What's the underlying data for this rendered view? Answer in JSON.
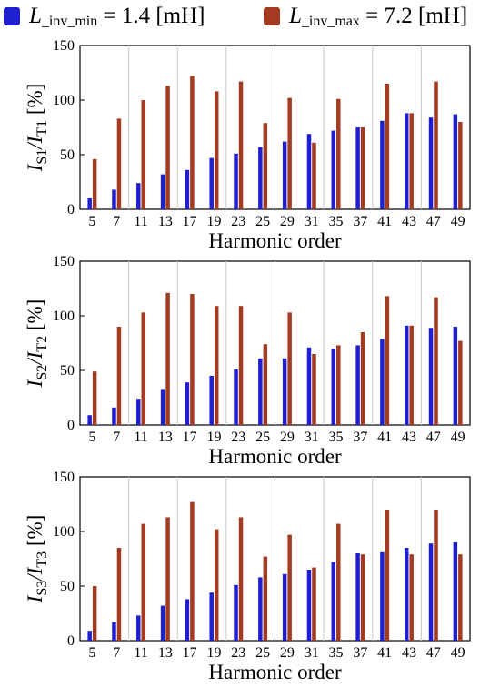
{
  "legend": {
    "items": [
      {
        "var": "L",
        "sub": "_inv_min",
        "value": " = 1.4 [mH]",
        "color": "#1f1fd0"
      },
      {
        "var": "L",
        "sub": "_inv_max",
        "value": " = 7.2 [mH]",
        "color": "#a33a22"
      }
    ]
  },
  "chart_data": [
    {
      "type": "bar",
      "categories": [
        "5",
        "7",
        "11",
        "13",
        "17",
        "19",
        "23",
        "25",
        "29",
        "31",
        "35",
        "37",
        "41",
        "43",
        "47",
        "49"
      ],
      "series": [
        {
          "name": "L_inv_min = 1.4 [mH]",
          "color": "#1f1fd0",
          "values": [
            10,
            18,
            24,
            32,
            36,
            47,
            51,
            57,
            62,
            69,
            72,
            75,
            81,
            88,
            84,
            87
          ]
        },
        {
          "name": "L_inv_max = 7.2 [mH]",
          "color": "#a33a22",
          "values": [
            46,
            83,
            100,
            113,
            122,
            108,
            117,
            79,
            102,
            61,
            101,
            75,
            115,
            88,
            117,
            80
          ]
        }
      ],
      "ylabel": {
        "main": "I",
        "sub1": "S1",
        "mid": "/I",
        "sub2": "T1",
        "tail": " [%]"
      },
      "xlabel": "Harmonic order",
      "ylim": [
        0,
        150
      ],
      "yticks": [
        0,
        50,
        100,
        150
      ],
      "grid": true
    },
    {
      "type": "bar",
      "categories": [
        "5",
        "7",
        "11",
        "13",
        "17",
        "19",
        "23",
        "25",
        "29",
        "31",
        "35",
        "37",
        "41",
        "43",
        "47",
        "49"
      ],
      "series": [
        {
          "name": "L_inv_min = 1.4 [mH]",
          "color": "#1f1fd0",
          "values": [
            9,
            16,
            24,
            33,
            39,
            45,
            51,
            61,
            61,
            71,
            70,
            73,
            79,
            91,
            89,
            90
          ]
        },
        {
          "name": "L_inv_max = 7.2 [mH]",
          "color": "#a33a22",
          "values": [
            49,
            90,
            103,
            121,
            120,
            109,
            109,
            74,
            103,
            65,
            73,
            85,
            118,
            91,
            117,
            77
          ]
        }
      ],
      "ylabel": {
        "main": "I",
        "sub1": "S2",
        "mid": "/I",
        "sub2": "T2",
        "tail": " [%]"
      },
      "xlabel": "Harmonic order",
      "ylim": [
        0,
        150
      ],
      "yticks": [
        0,
        50,
        100,
        150
      ],
      "grid": true
    },
    {
      "type": "bar",
      "categories": [
        "5",
        "7",
        "11",
        "13",
        "17",
        "19",
        "23",
        "25",
        "29",
        "31",
        "35",
        "37",
        "41",
        "43",
        "47",
        "49"
      ],
      "series": [
        {
          "name": "L_inv_min = 1.4 [mH]",
          "color": "#1f1fd0",
          "values": [
            9,
            17,
            23,
            32,
            38,
            44,
            51,
            58,
            61,
            65,
            72,
            80,
            81,
            85,
            89,
            90
          ]
        },
        {
          "name": "L_inv_max = 7.2 [mH]",
          "color": "#a33a22",
          "values": [
            50,
            85,
            107,
            113,
            127,
            102,
            113,
            77,
            97,
            67,
            107,
            79,
            120,
            79,
            120,
            79
          ]
        }
      ],
      "ylabel": {
        "main": "I",
        "sub1": "S3",
        "mid": "/I",
        "sub2": "T3",
        "tail": " [%]"
      },
      "xlabel": "Harmonic order",
      "ylim": [
        0,
        150
      ],
      "yticks": [
        0,
        50,
        100,
        150
      ],
      "grid": true
    }
  ]
}
